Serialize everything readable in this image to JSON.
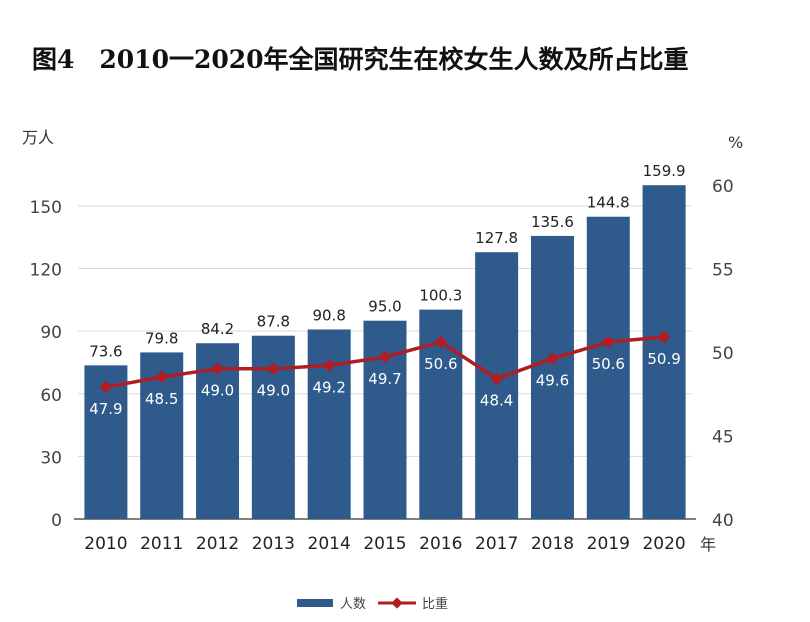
{
  "chart_data": {
    "type": "bar",
    "title": "图4　2010一2020年全国研究生在校女生人数及所占比重",
    "categories": [
      "2010",
      "2011",
      "2012",
      "2013",
      "2014",
      "2015",
      "2016",
      "2017",
      "2018",
      "2019",
      "2020"
    ],
    "x_unit": "年",
    "series": [
      {
        "name": "人数",
        "type": "bar",
        "axis": "left",
        "color": "#2e5a8c",
        "values": [
          73.6,
          79.8,
          84.2,
          87.8,
          90.8,
          95.0,
          100.3,
          127.8,
          135.6,
          144.8,
          159.9
        ],
        "labels": [
          "73.6",
          "79.8",
          "84.2",
          "87.8",
          "90.8",
          "95.0",
          "100.3",
          "127.8",
          "135.6",
          "144.8",
          "159.9"
        ]
      },
      {
        "name": "比重",
        "type": "line",
        "axis": "right",
        "color": "#b01e23",
        "values": [
          47.9,
          48.5,
          49.0,
          49.0,
          49.2,
          49.7,
          50.6,
          48.4,
          49.6,
          50.6,
          50.9
        ],
        "labels": [
          "47.9",
          "48.5",
          "49.0",
          "49.0",
          "49.2",
          "49.7",
          "50.6",
          "48.4",
          "49.6",
          "50.6",
          "50.9"
        ]
      }
    ],
    "y_left": {
      "label": "万人",
      "ylim": [
        0,
        165
      ],
      "ticks": [
        0,
        30,
        60,
        90,
        120,
        150
      ]
    },
    "y_right": {
      "label": "%",
      "ylim": [
        40,
        60
      ],
      "ticks": [
        40,
        45,
        50,
        55,
        60
      ]
    },
    "grid": true,
    "legend_position": "bottom"
  }
}
